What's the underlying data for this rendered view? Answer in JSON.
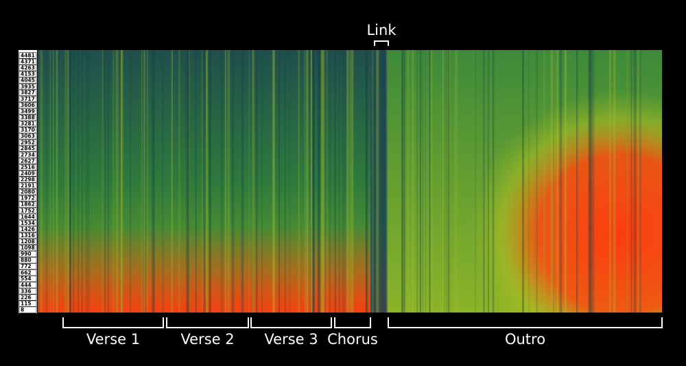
{
  "chart_data": {
    "type": "spectrogram",
    "yticks": [
      8,
      115,
      226,
      336,
      444,
      554,
      662,
      772,
      880,
      990,
      1098,
      1208,
      1316,
      1426,
      1534,
      1644,
      1752,
      1862,
      1972,
      2080,
      2191,
      2298,
      2409,
      2516,
      2627,
      2734,
      2845,
      2952,
      3063,
      3170,
      3281,
      3388,
      3499,
      3606,
      3717,
      3827,
      3935,
      4045,
      4153,
      4263,
      4371,
      4481
    ],
    "ylim": [
      8,
      4481
    ],
    "annotations": [
      {
        "label": "Verse 1"
      },
      {
        "label": "Verse 2"
      },
      {
        "label": "Verse 3"
      },
      {
        "label": "Chorus"
      },
      {
        "label": "Outro"
      },
      {
        "label": "Link"
      }
    ]
  }
}
